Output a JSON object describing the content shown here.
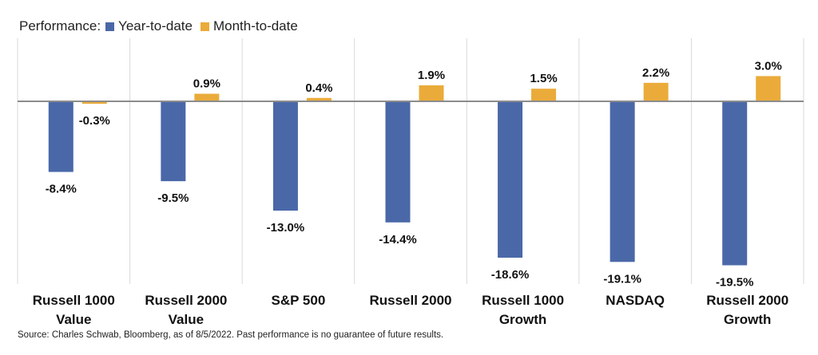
{
  "legend": {
    "title": "Performance:",
    "items": [
      {
        "label": "Year-to-date",
        "color": "#4a68a8"
      },
      {
        "label": "Month-to-date",
        "color": "#eaab3a"
      }
    ]
  },
  "source": "Source: Charles Schwab, Bloomberg, as of 8/5/2022.  Past performance is no guarantee of future results.",
  "chart_data": {
    "type": "bar",
    "title": "",
    "xlabel": "",
    "ylabel": "",
    "categories": [
      [
        "Russell 1000",
        "Value"
      ],
      [
        "Russell 2000",
        "Value"
      ],
      [
        "S&P 500"
      ],
      [
        "Russell 2000"
      ],
      [
        "Russell 1000",
        "Growth"
      ],
      [
        "NASDAQ"
      ],
      [
        "Russell 2000",
        "Growth"
      ]
    ],
    "series": [
      {
        "name": "Year-to-date",
        "color": "#4a68a8",
        "values": [
          -8.4,
          -9.5,
          -13.0,
          -14.4,
          -18.6,
          -19.1,
          -19.5
        ],
        "labels": [
          "-8.4%",
          "-9.5%",
          "-13.0%",
          "-14.4%",
          "-18.6%",
          "-19.1%",
          "-19.5%"
        ]
      },
      {
        "name": "Month-to-date",
        "color": "#eaab3a",
        "values": [
          -0.3,
          0.9,
          0.4,
          1.9,
          1.5,
          2.2,
          3.0
        ],
        "labels": [
          "-0.3%",
          "0.9%",
          "0.4%",
          "1.9%",
          "1.5%",
          "2.2%",
          "3.0%"
        ]
      }
    ],
    "ylim": [
      -21,
      7
    ],
    "grid": false,
    "legend_position": "top-left"
  }
}
